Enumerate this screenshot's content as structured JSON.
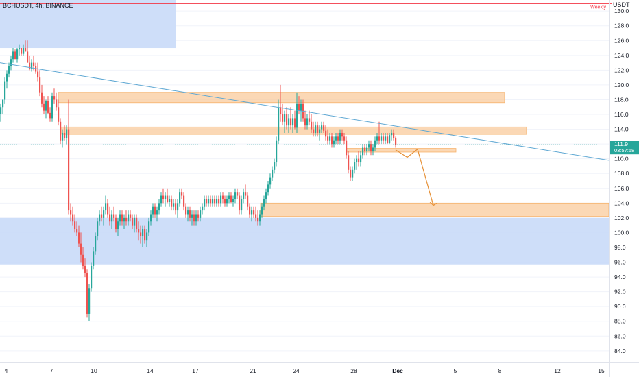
{
  "chart_data": {
    "type": "candlestick",
    "title": "BCHUSDT, 4h, BINANCE",
    "y_unit": "USDT",
    "y_range": [
      82.5,
      131.5
    ],
    "y_ticks": [
      "130.0",
      "128.0",
      "126.0",
      "124.0",
      "122.0",
      "120.0",
      "118.0",
      "116.0",
      "114.0",
      "112.0",
      "110.0",
      "108.0",
      "106.0",
      "104.0",
      "102.0",
      "100.0",
      "98.0",
      "96.0",
      "94.0",
      "92.0",
      "90.0",
      "88.0",
      "86.0",
      "84.0"
    ],
    "x_ticks": [
      "4",
      "7",
      "10",
      "14",
      "17",
      "21",
      "24",
      "28",
      "Dec",
      "5",
      "8",
      "12",
      "15"
    ],
    "last_price": "111.9",
    "countdown": "03:57:58",
    "weekly_level": {
      "label": "Weekly",
      "price": 131.0
    },
    "colors": {
      "up": "#26a69a",
      "down": "#ef5350",
      "trendline": "#5fa8d3",
      "zone_supply": "#f9cb9c",
      "zone_demand": "#c9daf8",
      "projection": "#e69138",
      "weekly": "#f23645"
    },
    "zones": [
      {
        "kind": "demand",
        "x_from": 0,
        "x_to": 257,
        "y_top": 131.5,
        "y_bottom": 125.0
      },
      {
        "kind": "demand",
        "x_from": 0,
        "x_to": 888,
        "y_top": 102.0,
        "y_bottom": 95.7
      },
      {
        "kind": "supply",
        "x_from": 85,
        "x_to": 736,
        "y_top": 119.0,
        "y_bottom": 117.6
      },
      {
        "kind": "supply",
        "x_from": 90,
        "x_to": 768,
        "y_top": 114.3,
        "y_bottom": 113.3
      },
      {
        "kind": "supply",
        "x_from": 505,
        "x_to": 665,
        "y_top": 111.4,
        "y_bottom": 110.9
      },
      {
        "kind": "supply",
        "x_from": 380,
        "x_to": 888,
        "y_top": 104.0,
        "y_bottom": 102.2
      }
    ],
    "trendline": {
      "from": [
        0,
        123.0
      ],
      "to": [
        888,
        109.8
      ]
    },
    "projection_path": [
      [
        577,
        111.2
      ],
      [
        594,
        110.2
      ],
      [
        609,
        111.3
      ],
      [
        632,
        103.7
      ]
    ],
    "candles": [
      [
        0,
        116,
        117.5,
        115,
        117
      ],
      [
        3,
        117,
        118,
        116,
        118
      ],
      [
        6,
        118,
        121,
        117.5,
        120.5
      ],
      [
        9,
        120.5,
        122,
        119.5,
        121.5
      ],
      [
        12,
        121.5,
        123,
        121,
        122.5
      ],
      [
        15,
        122.5,
        124,
        122,
        123.5
      ],
      [
        18,
        123.5,
        125,
        123,
        124.5
      ],
      [
        21,
        124.5,
        124.8,
        123.5,
        123.5
      ],
      [
        24,
        123.5,
        125,
        123,
        124.8
      ],
      [
        27,
        124.8,
        125.5,
        124,
        125
      ],
      [
        30,
        125,
        125,
        124,
        124.2
      ],
      [
        33,
        124.2,
        125.5,
        124,
        125
      ],
      [
        36,
        125,
        126,
        124.5,
        124.5
      ],
      [
        39,
        124.5,
        126,
        123,
        123
      ],
      [
        42,
        123,
        124,
        122,
        122.2
      ],
      [
        45,
        122.2,
        123.5,
        121.8,
        123
      ],
      [
        48,
        123,
        124,
        122,
        122.5
      ],
      [
        51,
        122.5,
        123,
        121.5,
        121.8
      ],
      [
        54,
        121.8,
        123,
        120.5,
        121
      ],
      [
        57,
        121,
        122,
        118.5,
        119
      ],
      [
        60,
        119,
        120,
        117,
        117.5
      ],
      [
        63,
        117.5,
        118.5,
        116,
        116.5
      ],
      [
        66,
        116.5,
        118,
        115.5,
        117.8
      ],
      [
        69,
        117.8,
        118.5,
        116,
        116.2
      ],
      [
        72,
        116.2,
        117,
        115,
        115.5
      ],
      [
        75,
        115.5,
        119,
        115,
        118.5
      ],
      [
        78,
        118.5,
        119.5,
        117.5,
        118
      ],
      [
        81,
        118,
        119,
        116.5,
        117
      ],
      [
        84,
        117,
        118,
        114.5,
        115
      ],
      [
        87,
        115,
        115.5,
        112,
        112.5
      ],
      [
        90,
        112.5,
        114,
        111.5,
        113.5
      ],
      [
        93,
        113.5,
        114.5,
        112.5,
        112.8
      ],
      [
        96,
        112.8,
        114.5,
        112,
        114
      ],
      [
        99,
        114,
        118,
        102.5,
        103
      ],
      [
        102,
        103,
        104,
        101.5,
        102.5
      ],
      [
        105,
        102.5,
        103.5,
        101,
        101.5
      ],
      [
        108,
        101.5,
        102.5,
        100,
        100.5
      ],
      [
        111,
        100.5,
        101.5,
        99.5,
        100
      ],
      [
        114,
        100,
        101,
        98,
        98.5
      ],
      [
        117,
        98.5,
        100,
        96,
        97
      ],
      [
        120,
        97,
        98,
        95,
        95.5
      ],
      [
        123,
        95.5,
        96.5,
        94,
        94.5
      ],
      [
        126,
        94.5,
        95,
        88.5,
        89
      ],
      [
        129,
        89,
        93,
        88,
        92.5
      ],
      [
        132,
        92.5,
        96,
        92,
        95.5
      ],
      [
        135,
        95.5,
        98,
        95,
        97.5
      ],
      [
        138,
        97.5,
        100,
        97,
        99.5
      ],
      [
        141,
        99.5,
        102,
        99,
        101.5
      ],
      [
        144,
        101.5,
        103,
        101,
        102.5
      ],
      [
        147,
        102.5,
        103.5,
        101.5,
        102
      ],
      [
        150,
        102,
        103.5,
        101,
        103
      ],
      [
        153,
        103,
        105,
        102.5,
        104
      ],
      [
        156,
        104,
        104.5,
        102,
        102.5
      ],
      [
        159,
        102.5,
        103.5,
        101,
        101.5
      ],
      [
        162,
        101.5,
        103,
        100.5,
        102.5
      ],
      [
        165,
        102.5,
        103.5,
        101.5,
        102
      ],
      [
        168,
        102,
        102.5,
        100,
        100.5
      ],
      [
        171,
        100.5,
        102,
        99.5,
        101.5
      ],
      [
        174,
        101.5,
        103,
        101,
        102.5
      ],
      [
        177,
        102.5,
        103,
        101,
        101.5
      ],
      [
        180,
        101.5,
        102.5,
        100.5,
        102
      ],
      [
        183,
        102,
        103,
        101,
        101.5
      ],
      [
        186,
        101.5,
        103,
        101,
        102.5
      ],
      [
        189,
        102.5,
        103,
        101.5,
        102
      ],
      [
        192,
        102,
        102.5,
        100.5,
        101
      ],
      [
        195,
        101,
        102.5,
        100,
        102
      ],
      [
        198,
        102,
        102.5,
        100,
        100.5
      ],
      [
        201,
        100.5,
        101.5,
        99,
        100
      ],
      [
        204,
        100,
        101,
        98.5,
        99.5
      ],
      [
        207,
        99.5,
        101,
        98,
        100.5
      ],
      [
        210,
        100.5,
        101,
        98.5,
        99
      ],
      [
        213,
        99,
        100.5,
        98,
        100
      ],
      [
        216,
        100,
        102,
        99.5,
        101.5
      ],
      [
        219,
        101.5,
        103,
        101,
        102.5
      ],
      [
        222,
        102.5,
        104,
        102,
        103.5
      ],
      [
        225,
        103.5,
        104,
        102,
        102.5
      ],
      [
        228,
        102.5,
        103.5,
        101.5,
        103
      ],
      [
        231,
        103,
        104.5,
        102.5,
        104
      ],
      [
        234,
        104,
        105.5,
        103.5,
        105
      ],
      [
        237,
        105,
        106,
        104,
        104.5
      ],
      [
        240,
        104.5,
        105.5,
        103.5,
        105
      ],
      [
        243,
        105,
        106,
        104,
        104.2
      ],
      [
        246,
        104.2,
        105,
        103.5,
        104.5
      ],
      [
        249,
        104.5,
        105,
        103,
        103.5
      ],
      [
        252,
        103.5,
        104.5,
        103,
        104
      ],
      [
        255,
        104,
        104.5,
        102.5,
        103
      ],
      [
        258,
        103,
        104.5,
        102,
        104
      ],
      [
        261,
        104,
        106,
        103.5,
        105.5
      ],
      [
        264,
        105.5,
        106,
        104.5,
        105
      ],
      [
        267,
        105,
        105.5,
        103,
        103.5
      ],
      [
        270,
        103.5,
        104,
        102,
        102.5
      ],
      [
        273,
        102.5,
        103.5,
        101.5,
        103
      ],
      [
        276,
        103,
        103.5,
        101.5,
        102
      ],
      [
        279,
        102,
        103,
        101,
        102.5
      ],
      [
        282,
        102.5,
        103,
        101,
        101.5
      ],
      [
        285,
        101.5,
        103,
        101,
        102.5
      ],
      [
        288,
        102.5,
        103,
        101.5,
        102
      ],
      [
        291,
        102,
        103.5,
        101.5,
        103
      ],
      [
        294,
        103,
        104,
        102.5,
        103.5
      ],
      [
        297,
        103.5,
        105,
        103,
        104.5
      ],
      [
        300,
        104.5,
        105,
        103.5,
        104
      ],
      [
        303,
        104,
        105,
        103.5,
        104.5
      ],
      [
        306,
        104.5,
        105,
        103.5,
        104
      ],
      [
        309,
        104,
        105,
        103.5,
        104.5
      ],
      [
        312,
        104.5,
        105,
        103.5,
        104
      ],
      [
        315,
        104,
        105,
        103.5,
        104.5
      ],
      [
        318,
        104.5,
        105,
        103.5,
        104
      ],
      [
        321,
        104,
        105.5,
        103.5,
        105
      ],
      [
        324,
        105,
        105.5,
        104,
        104.5
      ],
      [
        327,
        104.5,
        105,
        103.5,
        104
      ],
      [
        330,
        104,
        105,
        103.5,
        104.5
      ],
      [
        333,
        104.5,
        105.5,
        104,
        105
      ],
      [
        336,
        105,
        105.5,
        104,
        104.2
      ],
      [
        339,
        104.2,
        105,
        103.5,
        104.5
      ],
      [
        342,
        104.5,
        106,
        104,
        105.5
      ],
      [
        345,
        105.5,
        106,
        104.5,
        105
      ],
      [
        348,
        105,
        105.5,
        102.5,
        103
      ],
      [
        351,
        103,
        105,
        102.5,
        104.5
      ],
      [
        354,
        104.5,
        106,
        104,
        105.5
      ],
      [
        357,
        105.5,
        106.5,
        104.5,
        105
      ],
      [
        360,
        105,
        105.5,
        103,
        103.5
      ],
      [
        363,
        103.5,
        104,
        102,
        102.5
      ],
      [
        366,
        102.5,
        103.5,
        101.5,
        103
      ],
      [
        369,
        103,
        103.5,
        102,
        102.5
      ],
      [
        372,
        102.5,
        103.5,
        101.5,
        102
      ],
      [
        375,
        102,
        103,
        101,
        101.5
      ],
      [
        378,
        101.5,
        103,
        101,
        102.5
      ],
      [
        381,
        102.5,
        104,
        102,
        103.5
      ],
      [
        384,
        103.5,
        105,
        103,
        104.5
      ],
      [
        387,
        104.5,
        106,
        104,
        105.5
      ],
      [
        390,
        105.5,
        107,
        105,
        106.5
      ],
      [
        393,
        106.5,
        108,
        106,
        107.5
      ],
      [
        396,
        107.5,
        109,
        107,
        108.5
      ],
      [
        399,
        108.5,
        110,
        108,
        109.5
      ],
      [
        402,
        109.5,
        113,
        109,
        112.5
      ],
      [
        405,
        112.5,
        118,
        112,
        117
      ],
      [
        408,
        117,
        120,
        115,
        116
      ],
      [
        411,
        116,
        117.5,
        114.5,
        115
      ],
      [
        414,
        115,
        116.5,
        113.5,
        116
      ],
      [
        417,
        116,
        117,
        114,
        114.5
      ],
      [
        420,
        114.5,
        116,
        113.5,
        115.5
      ],
      [
        423,
        115.5,
        117,
        114,
        114.5
      ],
      [
        426,
        114.5,
        116,
        113.5,
        115.5
      ],
      [
        429,
        115.5,
        116.5,
        114,
        114.2
      ],
      [
        432,
        114.2,
        119,
        113.5,
        117.5
      ],
      [
        435,
        117.5,
        118.5,
        116,
        116.5
      ],
      [
        438,
        116.5,
        118,
        115,
        117.5
      ],
      [
        441,
        117.5,
        118,
        115,
        115.5
      ],
      [
        444,
        115.5,
        116.5,
        114,
        114.5
      ],
      [
        447,
        114.5,
        116,
        114,
        115.5
      ],
      [
        450,
        115.5,
        116.5,
        114.5,
        115
      ],
      [
        453,
        115,
        116,
        113.5,
        114
      ],
      [
        456,
        114,
        115,
        113,
        113.5
      ],
      [
        459,
        113.5,
        115,
        113,
        114.5
      ],
      [
        462,
        114.5,
        115,
        113,
        113.5
      ],
      [
        465,
        113.5,
        114.5,
        112.5,
        114
      ],
      [
        468,
        114,
        115,
        113.5,
        114.5
      ],
      [
        471,
        114.5,
        115,
        113.5,
        113.8
      ],
      [
        474,
        113.8,
        114.5,
        112.5,
        113
      ],
      [
        477,
        113,
        114,
        112,
        112.5
      ],
      [
        480,
        112.5,
        113.5,
        112,
        113
      ],
      [
        483,
        113,
        113.5,
        111.5,
        112
      ],
      [
        486,
        112,
        113,
        111.5,
        112.5
      ],
      [
        489,
        112.5,
        113.5,
        112,
        113
      ],
      [
        492,
        113,
        113.5,
        112,
        112.5
      ],
      [
        495,
        112.5,
        114,
        112,
        113.5
      ],
      [
        498,
        113.5,
        114,
        112.5,
        113
      ],
      [
        501,
        113,
        113.5,
        112,
        112.5
      ],
      [
        504,
        112.5,
        113,
        110,
        110.5
      ],
      [
        507,
        110.5,
        111,
        108,
        108.5
      ],
      [
        510,
        108.5,
        109,
        107,
        107.5
      ],
      [
        513,
        107.5,
        109,
        107,
        108.5
      ],
      [
        516,
        108.5,
        110,
        108,
        109.5
      ],
      [
        519,
        109.5,
        110.5,
        108.5,
        110
      ],
      [
        522,
        110,
        111,
        109,
        109.5
      ],
      [
        525,
        109.5,
        111,
        109,
        110.5
      ],
      [
        528,
        110.5,
        112,
        110,
        111.5
      ],
      [
        531,
        111.5,
        112,
        110.5,
        111
      ],
      [
        534,
        111,
        112,
        110.5,
        111.5
      ],
      [
        537,
        111.5,
        112.5,
        111,
        112
      ],
      [
        540,
        112,
        112.5,
        110.5,
        111
      ],
      [
        543,
        111,
        112,
        110.5,
        111.5
      ],
      [
        546,
        111.5,
        113,
        111,
        112.5
      ],
      [
        549,
        112.5,
        113.5,
        112,
        113
      ],
      [
        552,
        113,
        115,
        112,
        112.5
      ],
      [
        555,
        112.5,
        113.5,
        112,
        113
      ],
      [
        558,
        113,
        113.5,
        112,
        112.5
      ],
      [
        561,
        112.5,
        113.5,
        112,
        113
      ],
      [
        564,
        113,
        113.5,
        112,
        112.2
      ],
      [
        567,
        112.2,
        113.5,
        112,
        113.2
      ],
      [
        570,
        113.2,
        114,
        112.5,
        113.5
      ],
      [
        573,
        113.5,
        114,
        112.5,
        112.8
      ],
      [
        576,
        112.8,
        113,
        111.5,
        111.9
      ]
    ]
  }
}
